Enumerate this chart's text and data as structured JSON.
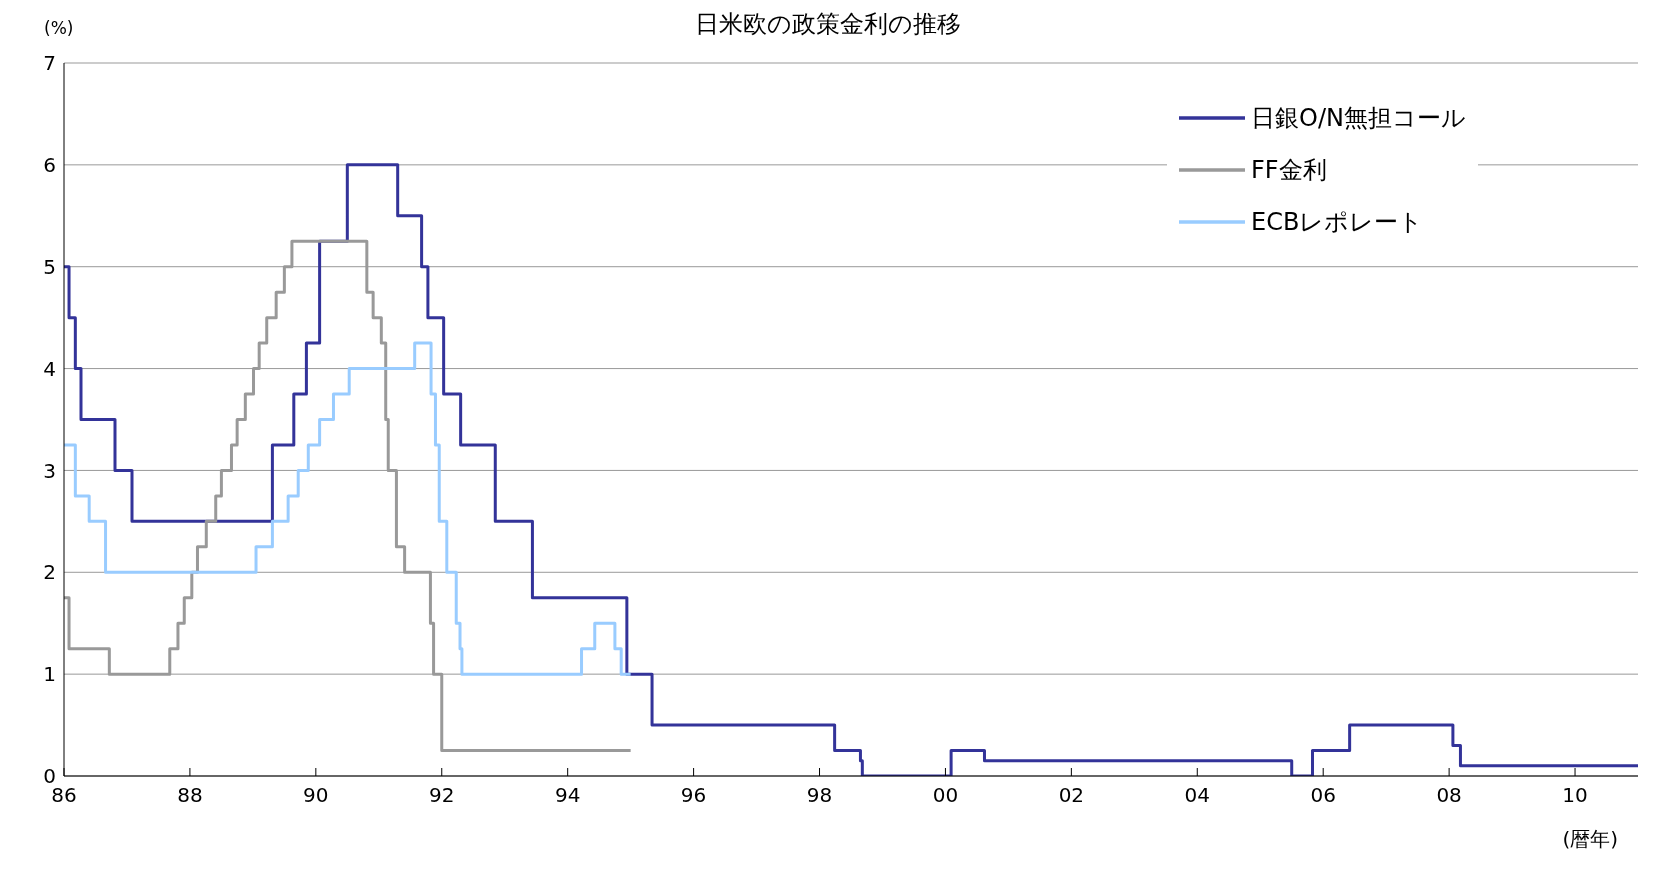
{
  "chart_data": {
    "type": "step",
    "title": "日米欧の政策金利の推移",
    "xlabel": "(暦年)",
    "ylabel": "(%)",
    "xlim": [
      1986,
      2011
    ],
    "xticks": [
      {
        "value": 1986,
        "label": "86"
      },
      {
        "value": 1988,
        "label": "88"
      },
      {
        "value": 1990,
        "label": "90"
      },
      {
        "value": 1992,
        "label": "92"
      },
      {
        "value": 1994,
        "label": "94"
      },
      {
        "value": 1996,
        "label": "96"
      },
      {
        "value": 1998,
        "label": "98"
      },
      {
        "value": 2000,
        "label": "00"
      },
      {
        "value": 2002,
        "label": "02"
      },
      {
        "value": 2004,
        "label": "04"
      },
      {
        "value": 2006,
        "label": "06"
      },
      {
        "value": 2008,
        "label": "08"
      },
      {
        "value": 2010,
        "label": "10"
      }
    ],
    "ylim": [
      0,
      7
    ],
    "yticks": [
      0,
      1,
      2,
      3,
      4,
      5,
      6,
      7
    ],
    "grid": "y",
    "legend": "top right",
    "marker": "none",
    "line_style": "solid",
    "series": [
      {
        "name": "日銀O/N無担コール",
        "color": "#333399",
        "x": [
          1986,
          1986.08,
          1986.18,
          1986.27,
          1986.81,
          1987.08,
          1989.31,
          1989.65,
          1989.85,
          1990.06,
          1990.5,
          1991.3,
          1991.68,
          1991.78,
          1992.03,
          1992.3,
          1992.85,
          1993.44,
          1994.94,
          1995.34,
          1998.24,
          1998.65,
          1998.68,
          2000.09,
          2000.62,
          2005.5,
          2005.83,
          2006.42,
          2008.06,
          2008.18,
          2011
        ],
        "values": [
          5,
          4.5,
          4,
          3.5,
          3,
          2.5,
          3.25,
          3.75,
          4.25,
          5.25,
          6,
          5.5,
          5,
          4.5,
          3.75,
          3.25,
          2.5,
          1.75,
          1,
          0.5,
          0.25,
          0.15,
          0,
          0.25,
          0.15,
          0,
          0.25,
          0.5,
          0.3,
          0.1,
          0.1
        ]
      },
      {
        "name": "FF金利",
        "color": "#999999",
        "x": [
          1986,
          1986.08,
          1986.72,
          1987.68,
          1987.81,
          1987.91,
          1988.03,
          1988.12,
          1988.26,
          1988.41,
          1988.5,
          1988.66,
          1988.75,
          1988.88,
          1989.01,
          1989.1,
          1989.22,
          1989.37,
          1989.5,
          1989.62,
          1990.81,
          1990.91,
          1991.04,
          1991.11,
          1991.15,
          1991.28,
          1991.41,
          1991.82,
          1991.87,
          1992,
          1995
        ],
        "values": [
          1.75,
          1.25,
          1,
          1.25,
          1.5,
          1.75,
          2,
          2.25,
          2.5,
          2.75,
          3,
          3.25,
          3.5,
          3.75,
          4,
          4.25,
          4.5,
          4.75,
          5,
          5.25,
          4.75,
          4.5,
          4.25,
          3.5,
          3,
          2.25,
          2,
          1.5,
          1,
          0.25,
          0.25
        ]
      },
      {
        "name": "ECBレポレート",
        "color": "#99ccff",
        "x": [
          1986,
          1986.18,
          1986.4,
          1986.66,
          1989.05,
          1989.31,
          1989.56,
          1989.72,
          1989.88,
          1990.06,
          1990.28,
          1990.53,
          1991.57,
          1991.83,
          1991.9,
          1991.96,
          1992.08,
          1992.23,
          1992.29,
          1992.32,
          1994.22,
          1994.43,
          1994.75,
          1994.85,
          1995
        ],
        "values": [
          3.25,
          2.75,
          2.5,
          2,
          2.25,
          2.5,
          2.75,
          3,
          3.25,
          3.5,
          3.75,
          4,
          4.25,
          3.75,
          3.25,
          2.5,
          2,
          1.5,
          1.25,
          1,
          1.25,
          1.5,
          1.25,
          1,
          1
        ]
      }
    ]
  }
}
